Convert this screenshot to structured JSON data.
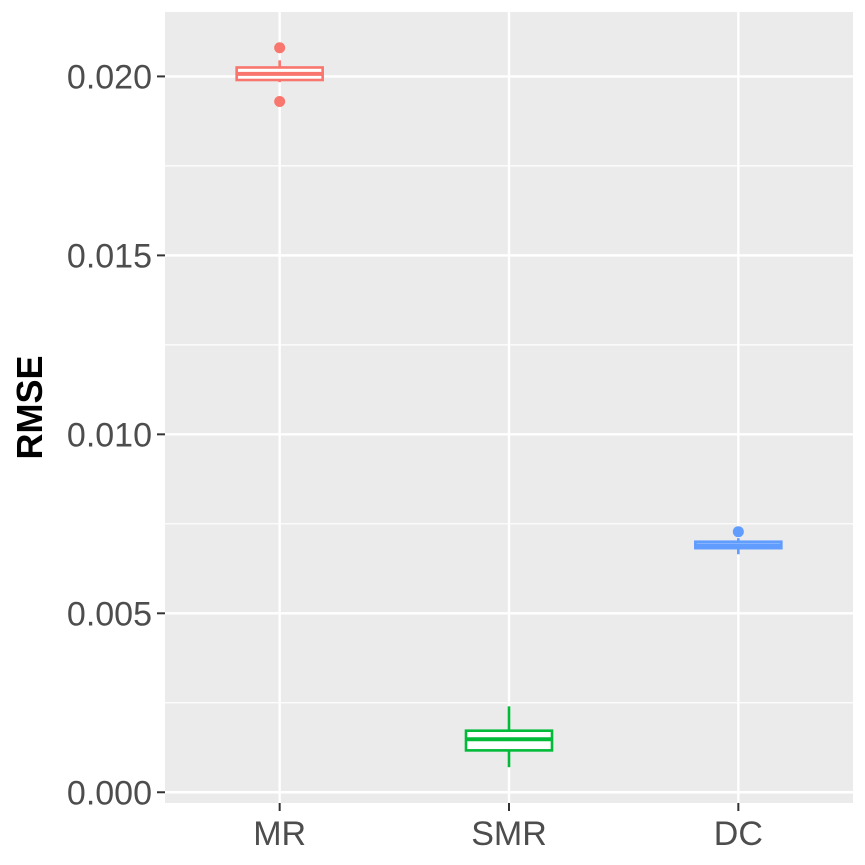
{
  "chart_data": {
    "type": "boxplot",
    "title": "",
    "xlabel": "",
    "ylabel": "RMSE",
    "ylim": [
      -0.0003,
      0.0218
    ],
    "yticks": [
      0.0,
      0.005,
      0.01,
      0.015,
      0.02
    ],
    "ytick_labels": [
      "0.000",
      "0.005",
      "0.010",
      "0.015",
      "0.020"
    ],
    "categories": [
      "MR",
      "SMR",
      "DC"
    ],
    "grid": true,
    "legend": "none",
    "background_color": "#ebebeb",
    "grid_color": "#ffffff",
    "series": [
      {
        "category": "MR",
        "color": "#f8766d",
        "whisker_low": 0.01984,
        "q1": 0.0199,
        "median": 0.02007,
        "q3": 0.02025,
        "whisker_high": 0.02045,
        "outliers": [
          0.0208,
          0.0193
        ]
      },
      {
        "category": "SMR",
        "color": "#00ba38",
        "whisker_low": 0.0007,
        "q1": 0.00117,
        "median": 0.00148,
        "q3": 0.00172,
        "whisker_high": 0.0024,
        "outliers": []
      },
      {
        "category": "DC",
        "color": "#619cff",
        "whisker_low": 0.00665,
        "q1": 0.00682,
        "median": 0.0069,
        "q3": 0.007,
        "whisker_high": 0.0071,
        "outliers": [
          0.00728
        ]
      }
    ]
  }
}
